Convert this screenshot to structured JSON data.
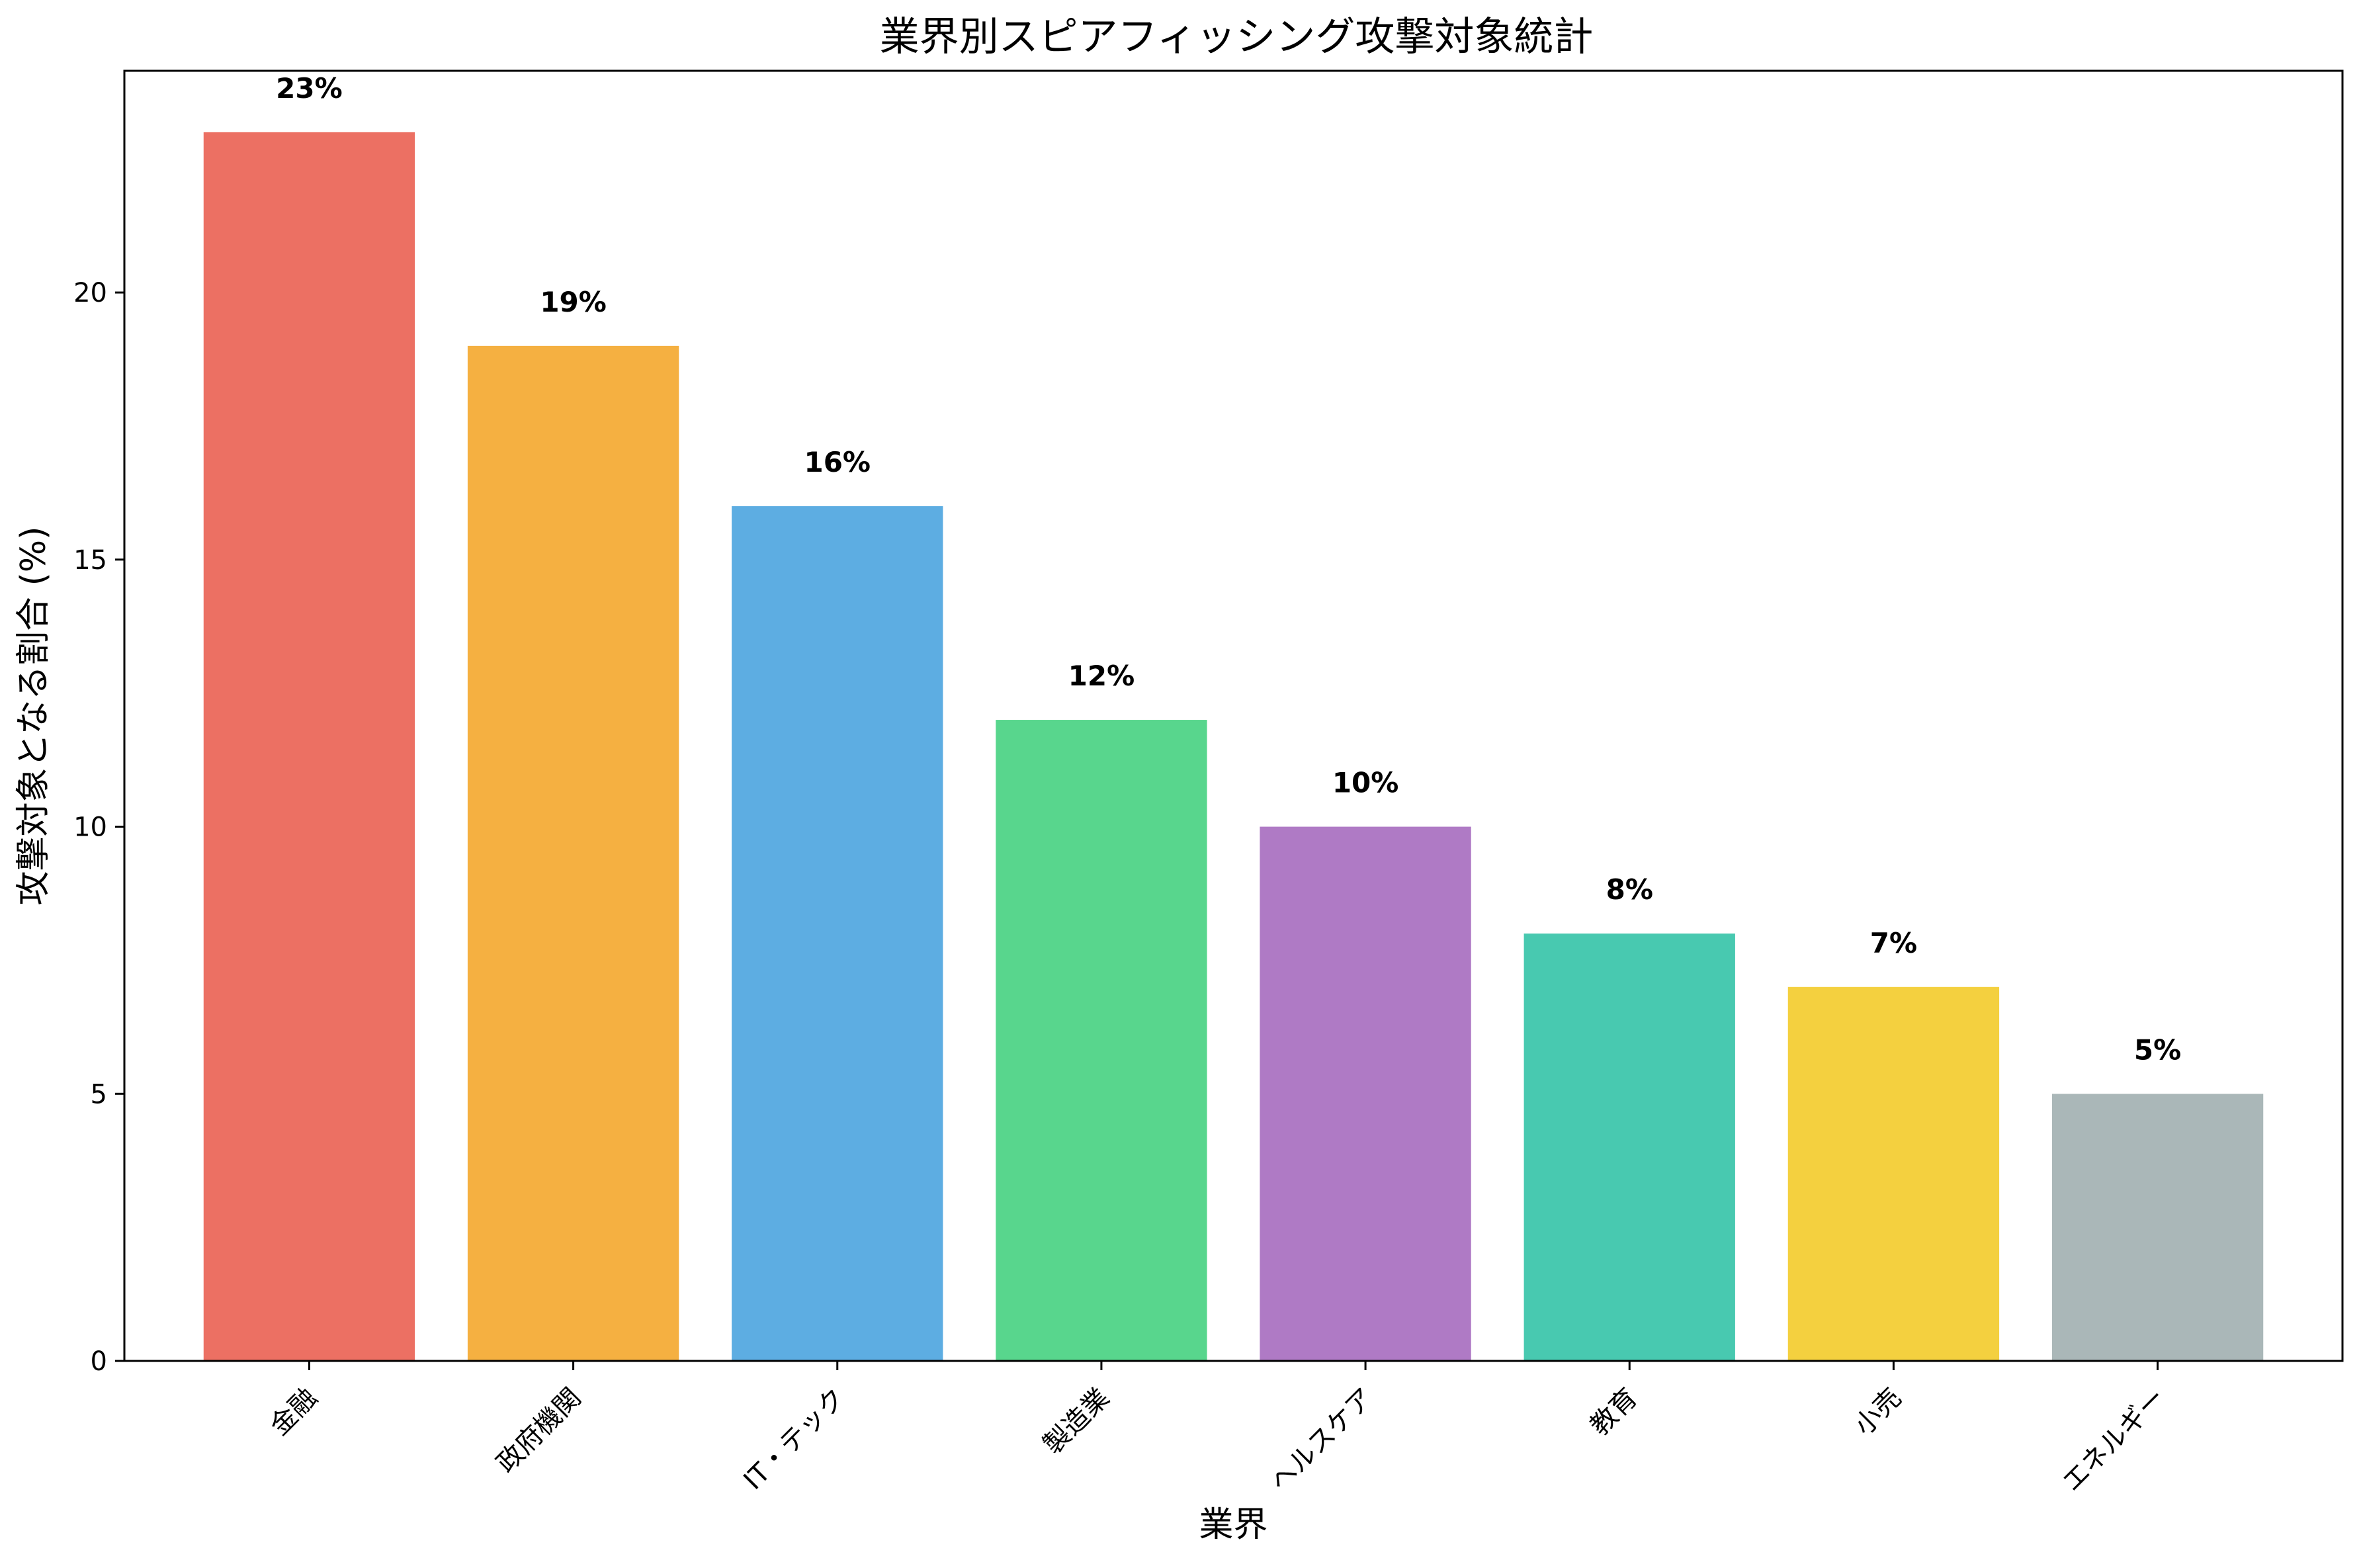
{
  "chart_data": {
    "type": "bar",
    "title": "業界別スピアフィッシング攻撃対象統計",
    "xlabel": "業界",
    "ylabel": "攻撃対象となる割合 (%)",
    "categories": [
      "金融",
      "政府機関",
      "IT・テック",
      "製造業",
      "ヘルスケア",
      "教育",
      "小売",
      "エネルギー"
    ],
    "values": [
      23,
      19,
      16,
      12,
      10,
      8,
      7,
      5
    ],
    "value_labels": [
      "23%",
      "19%",
      "16%",
      "12%",
      "10%",
      "8%",
      "7%",
      "5%"
    ],
    "colors": [
      "#ec7063",
      "#f5b041",
      "#5dade2",
      "#58d68d",
      "#af7ac5",
      "#48c9b0",
      "#f4d03f",
      "#aab7b8"
    ],
    "ylim": [
      0,
      24.15
    ],
    "yticks": [
      0,
      5,
      10,
      15,
      20
    ],
    "grid": false,
    "legend": "none"
  }
}
